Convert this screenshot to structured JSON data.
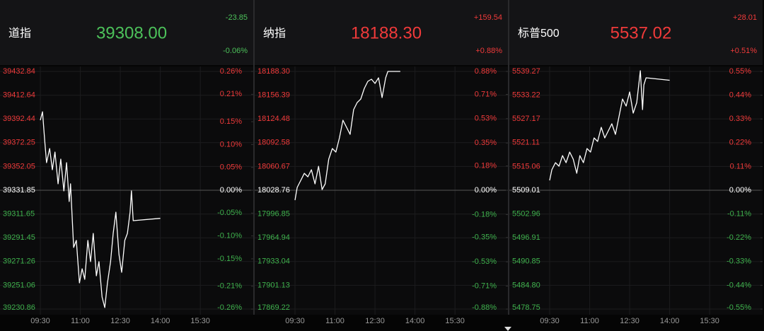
{
  "chart_data": [
    {
      "type": "line",
      "title": "道指",
      "price": "39308.00",
      "change": "-23.85",
      "change_pct": "-0.06%",
      "price_color": "#4cc15a",
      "color": "#ffffff",
      "up_color": "#f03a3a",
      "down_color": "#3fb24d",
      "grid": true,
      "x": [
        "09:30",
        "09:35",
        "09:40",
        "09:44",
        "09:51",
        "09:57",
        "10:03",
        "10:10",
        "10:16",
        "10:23",
        "10:29",
        "10:35",
        "10:38",
        "10:45",
        "10:51",
        "10:58",
        "11:04",
        "11:10",
        "11:17",
        "11:23",
        "11:29",
        "11:36",
        "11:42",
        "11:49",
        "11:55",
        "12:01",
        "12:08",
        "12:14",
        "12:20",
        "12:27",
        "12:33",
        "12:40",
        "12:46",
        "12:52",
        "12:55",
        "12:59",
        "14:00"
      ],
      "values": [
        39391.4,
        39398.6,
        39373.3,
        39355.3,
        39367.3,
        39349.3,
        39364.3,
        39337.3,
        39358.3,
        39331.3,
        39355.3,
        39322.3,
        39337.3,
        39283.2,
        39289.2,
        39253.1,
        39265.1,
        39256.1,
        39289.2,
        39271.2,
        39295.2,
        39259.1,
        39271.2,
        39241.1,
        39232.1,
        39253.1,
        39271.2,
        39295.2,
        39313.2,
        39277.2,
        39262.1,
        39289.2,
        39295.2,
        39313.2,
        39331.3,
        39306.0,
        39308
      ],
      "xlim": [
        "09:30",
        "16:00"
      ],
      "xticks": [
        "09:30",
        "11:00",
        "12:30",
        "14:00",
        "15:30"
      ],
      "ylim": [
        39230.86,
        39432.84
      ],
      "yticks": [
        39432.84,
        39412.64,
        39392.44,
        39372.25,
        39352.05,
        39331.85,
        39311.65,
        39291.45,
        39271.26,
        39251.06,
        39230.86
      ],
      "y2lim": [
        -0.26,
        0.26
      ],
      "y2ticks": [
        {
          "value": 0.26,
          "label": "0.26%"
        },
        {
          "value": 0.21,
          "label": "0.21%"
        },
        {
          "value": 0.15,
          "label": "0.15%"
        },
        {
          "value": 0.1,
          "label": "0.10%"
        },
        {
          "value": 0.05,
          "label": "0.05%"
        },
        {
          "value": 0,
          "label": "0.00%"
        },
        {
          "value": -0.05,
          "label": "-0.05%"
        },
        {
          "value": -0.1,
          "label": "-0.10%"
        },
        {
          "value": -0.15,
          "label": "-0.15%"
        },
        {
          "value": -0.21,
          "label": "-0.21%"
        },
        {
          "value": -0.26,
          "label": "-0.26%"
        }
      ]
    },
    {
      "type": "line",
      "title": "纳指",
      "price": "18188.30",
      "change": "+159.54",
      "change_pct": "+0.88%",
      "price_color": "#f03a3a",
      "color": "#ffffff",
      "up_color": "#f03a3a",
      "down_color": "#3fb24d",
      "grid": true,
      "x": [
        "09:30",
        "09:35",
        "09:43",
        "09:51",
        "09:59",
        "10:07",
        "10:15",
        "10:23",
        "10:31",
        "10:38",
        "10:46",
        "10:54",
        "11:02",
        "11:10",
        "11:18",
        "11:26",
        "11:34",
        "11:42",
        "11:50",
        "11:58",
        "12:06",
        "12:14",
        "12:22",
        "12:30",
        "12:38",
        "12:46",
        "12:54",
        "12:59",
        "13:27"
      ],
      "values": [
        18015.5,
        18032.6,
        18042.1,
        18051.5,
        18046.8,
        18056.3,
        18037.3,
        18061.0,
        18029.7,
        18037.3,
        18070.5,
        18084.8,
        18080.0,
        18099.0,
        18122.8,
        18113.3,
        18103.8,
        18137.0,
        18146.5,
        18151.3,
        18165.5,
        18175.0,
        18177.9,
        18172.2,
        18179.8,
        18153.2,
        18179.8,
        18188.3,
        18188.3
      ],
      "xlim": [
        "09:30",
        "16:00"
      ],
      "xticks": [
        "09:30",
        "11:00",
        "12:30",
        "14:00",
        "15:30"
      ],
      "ylim": [
        17869.22,
        18188.3
      ],
      "yticks": [
        {
          "value": 18188.3,
          "label": "18188.30"
        },
        18156.39,
        18124.48,
        18092.58,
        18060.67,
        18028.76,
        17996.85,
        17964.94,
        17933.04,
        17901.13,
        17869.22
      ],
      "y2lim": [
        -0.88,
        0.88
      ],
      "y2ticks": [
        {
          "value": 0.88,
          "label": "0.88%"
        },
        {
          "value": 0.71,
          "label": "0.71%"
        },
        {
          "value": 0.53,
          "label": "0.53%"
        },
        {
          "value": 0.35,
          "label": "0.35%"
        },
        {
          "value": 0.18,
          "label": "0.18%"
        },
        {
          "value": 0,
          "label": "0.00%"
        },
        {
          "value": -0.18,
          "label": "-0.18%"
        },
        {
          "value": -0.35,
          "label": "-0.35%"
        },
        {
          "value": -0.53,
          "label": "-0.53%"
        },
        {
          "value": -0.71,
          "label": "-0.71%"
        },
        {
          "value": -0.88,
          "label": "-0.88%"
        }
      ]
    },
    {
      "type": "line",
      "title": "标普500",
      "price": "5537.02",
      "change": "+28.01",
      "change_pct": "+0.51%",
      "price_color": "#f03a3a",
      "color": "#ffffff",
      "up_color": "#f03a3a",
      "down_color": "#3fb24d",
      "grid": true,
      "x": [
        "09:30",
        "09:35",
        "09:43",
        "09:51",
        "09:59",
        "10:07",
        "10:15",
        "10:23",
        "10:31",
        "10:38",
        "10:46",
        "10:54",
        "11:02",
        "11:10",
        "11:18",
        "11:26",
        "11:34",
        "11:42",
        "11:50",
        "11:58",
        "12:06",
        "12:14",
        "12:22",
        "12:30",
        "12:38",
        "12:46",
        "12:54",
        "12:59",
        "13:02",
        "13:07",
        "14:00"
      ],
      "values": [
        5511.53,
        5514.23,
        5516.03,
        5515.13,
        5517.84,
        5516.03,
        5518.74,
        5516.94,
        5513.33,
        5517.84,
        5516.03,
        5519.64,
        5518.74,
        5522.34,
        5521.44,
        5525.04,
        5522.34,
        5524.14,
        5525.94,
        5523.24,
        5527.74,
        5532.25,
        5530.44,
        5534.05,
        5528.64,
        5531.34,
        5539.45,
        5529.54,
        5535.85,
        5537.65,
        5537.02
      ],
      "xlim": [
        "09:30",
        "16:00"
      ],
      "xticks": [
        "09:30",
        "11:00",
        "12:30",
        "14:00",
        "15:30"
      ],
      "ylim": [
        5478.75,
        5539.27
      ],
      "yticks": [
        5539.27,
        5533.22,
        5527.17,
        5521.11,
        5515.06,
        5509.01,
        5502.96,
        5496.91,
        5490.85,
        {
          "value": 5484.8,
          "label": "5484.80"
        },
        5478.75
      ],
      "y2lim": [
        -0.55,
        0.55
      ],
      "y2ticks": [
        {
          "value": 0.55,
          "label": "0.55%"
        },
        {
          "value": 0.44,
          "label": "0.44%"
        },
        {
          "value": 0.33,
          "label": "0.33%"
        },
        {
          "value": 0.22,
          "label": "0.22%"
        },
        {
          "value": 0.11,
          "label": "0.11%"
        },
        {
          "value": 0,
          "label": "0.00%"
        },
        {
          "value": -0.11,
          "label": "-0.11%"
        },
        {
          "value": -0.22,
          "label": "-0.22%"
        },
        {
          "value": -0.33,
          "label": "-0.33%"
        },
        {
          "value": -0.44,
          "label": "-0.44%"
        },
        {
          "value": -0.55,
          "label": "-0.55%"
        }
      ]
    }
  ]
}
